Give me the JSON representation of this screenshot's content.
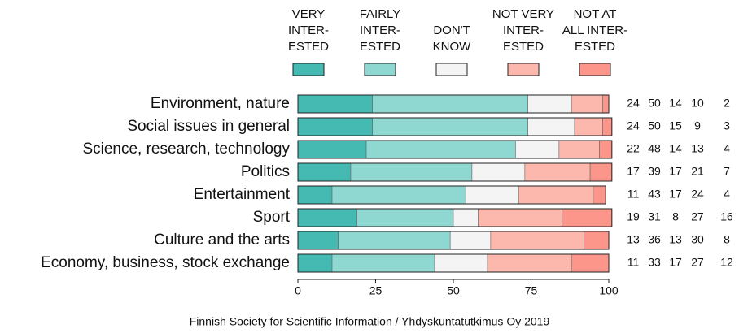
{
  "chart_data": {
    "type": "stacked-bar-horizontal",
    "categories": [
      "Environment, nature",
      "Social issues in general",
      "Science, research, technology",
      "Politics",
      "Entertainment",
      "Sport",
      "Culture and the arts",
      "Economy, business, stock exchange"
    ],
    "series": [
      {
        "name": "VERY\nINTER-\nESTED",
        "color": "#45bab3",
        "values": [
          24,
          24,
          22,
          17,
          11,
          19,
          13,
          11
        ]
      },
      {
        "name": "FAIRLY\nINTER-\nESTED",
        "color": "#8ed8d1",
        "values": [
          50,
          50,
          48,
          39,
          43,
          31,
          36,
          33
        ]
      },
      {
        "name": "DON'T\nKNOW",
        "color": "#f4f4f4",
        "values": [
          14,
          15,
          14,
          17,
          17,
          8,
          13,
          17
        ]
      },
      {
        "name": "NOT VERY\nINTER-\nESTED",
        "color": "#fdb8ad",
        "values": [
          10,
          9,
          13,
          21,
          24,
          27,
          30,
          27
        ]
      },
      {
        "name": "NOT AT\nALL INTER-\nESTED",
        "color": "#fc958a",
        "values": [
          2,
          3,
          4,
          7,
          4,
          16,
          8,
          12
        ]
      }
    ],
    "xlim": [
      0,
      100
    ],
    "xticks": [
      0,
      25,
      50,
      75,
      100
    ],
    "source": "Finnish Society for Scientific Information / Yhdyskuntatutkimus Oy 2019"
  }
}
